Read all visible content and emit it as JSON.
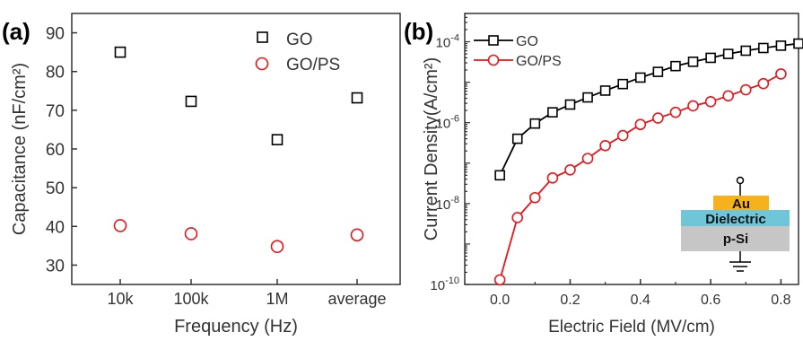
{
  "colors": {
    "go": "#000000",
    "gops": "#e8161a",
    "au": "#f5b21c",
    "dielectric": "#6fc6d8",
    "psi": "#c6c6c6",
    "axis": "#333333"
  },
  "chart_data": [
    {
      "panel_label": "(a)",
      "type": "scatter",
      "xlabel": "Frequency (Hz)",
      "ylabel": "Capacitance (nF/cm²)",
      "categories": [
        "10k",
        "100k",
        "1M",
        "average"
      ],
      "ylim": [
        25,
        95
      ],
      "yticks": [
        30,
        40,
        50,
        60,
        70,
        80,
        90
      ],
      "legend_position": "top-right",
      "grid": false,
      "series": [
        {
          "name": "GO",
          "marker": "square",
          "values": [
            85.0,
            72.3,
            62.4,
            73.2
          ]
        },
        {
          "name": "GO/PS",
          "marker": "circle",
          "values": [
            40.2,
            38.1,
            34.8,
            37.8
          ]
        }
      ]
    },
    {
      "panel_label": "(b)",
      "type": "line",
      "xlabel": "Electric Field (MV/cm)",
      "ylabel": "Current Density(A/cm²)",
      "xlim": [
        -0.1,
        0.85
      ],
      "xticks": [
        0.0,
        0.2,
        0.4,
        0.6,
        0.8
      ],
      "xticklabels": [
        "0.0",
        "0.2",
        "0.4",
        "0.6",
        "0.8"
      ],
      "yscale": "log",
      "ylim": [
        1e-10,
        0.0005
      ],
      "ytick_exponents": [
        -10,
        -8,
        -6,
        -4
      ],
      "legend_position": "top-left",
      "grid": false,
      "series": [
        {
          "name": "GO",
          "marker": "square",
          "x": [
            0.0,
            0.05,
            0.1,
            0.15,
            0.2,
            0.25,
            0.3,
            0.35,
            0.4,
            0.45,
            0.5,
            0.55,
            0.6,
            0.65,
            0.7,
            0.75,
            0.8,
            0.85
          ],
          "y": [
            5e-08,
            4e-07,
            9.5e-07,
            1.8e-06,
            2.8e-06,
            4.2e-06,
            6.2e-06,
            9e-06,
            1.3e-05,
            1.8e-05,
            2.5e-05,
            3.2e-05,
            4e-05,
            5e-05,
            6e-05,
            7e-05,
            8e-05,
            9e-05
          ]
        },
        {
          "name": "GO/PS",
          "marker": "circle",
          "x": [
            0.0,
            0.05,
            0.1,
            0.15,
            0.2,
            0.25,
            0.3,
            0.35,
            0.4,
            0.45,
            0.5,
            0.55,
            0.6,
            0.65,
            0.7,
            0.75,
            0.8
          ],
          "y": [
            1.3e-10,
            4.5e-09,
            1.4e-08,
            4.3e-08,
            6.8e-08,
            1.3e-07,
            2.7e-07,
            4.8e-07,
            9e-07,
            1.3e-06,
            1.8e-06,
            2.6e-06,
            3.3e-06,
            4.6e-06,
            6.5e-06,
            9.2e-06,
            1.6e-05
          ]
        }
      ],
      "inset": {
        "layers": [
          "Au",
          "Dielectric",
          "p-Si"
        ]
      }
    }
  ]
}
